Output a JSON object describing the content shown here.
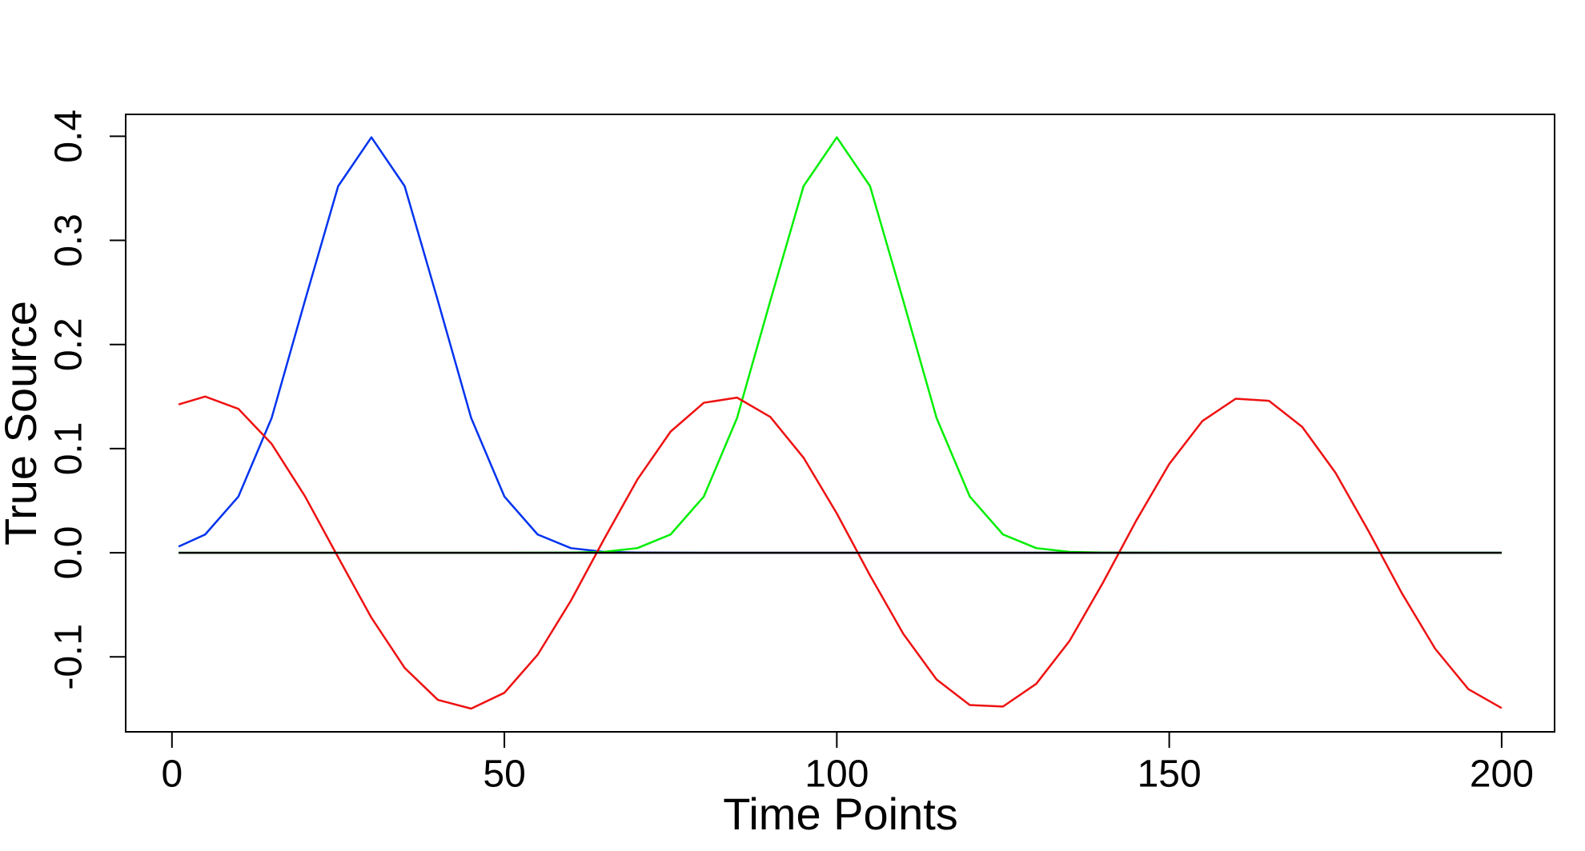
{
  "chart_data": {
    "type": "line",
    "xlabel": "Time Points",
    "ylabel": "True Source",
    "x": [
      1,
      5,
      10,
      15,
      20,
      25,
      30,
      35,
      40,
      45,
      50,
      55,
      60,
      65,
      70,
      75,
      80,
      85,
      90,
      95,
      100,
      105,
      110,
      115,
      120,
      125,
      130,
      135,
      140,
      145,
      150,
      155,
      160,
      165,
      170,
      175,
      180,
      185,
      190,
      195,
      200
    ],
    "series": [
      {
        "color": "#0033ee",
        "values": [
          0.00595,
          0.01753,
          0.05399,
          0.12952,
          0.24197,
          0.35207,
          0.39894,
          0.35207,
          0.24197,
          0.12952,
          0.05399,
          0.01753,
          0.00443,
          0.00087,
          0.00013,
          2e-05,
          0,
          0,
          0,
          0,
          0,
          0,
          0,
          0,
          0,
          0,
          0,
          0,
          0,
          0,
          0,
          0,
          0,
          0,
          0,
          0,
          0,
          0,
          0,
          0,
          0
        ]
      },
      {
        "color": "#00ee00",
        "values": [
          0,
          0,
          0,
          0,
          0,
          0,
          0,
          0,
          0,
          0,
          0,
          2e-05,
          0.00013,
          0.00087,
          0.00443,
          0.01753,
          0.05399,
          0.12952,
          0.24197,
          0.35207,
          0.39894,
          0.35207,
          0.24197,
          0.12952,
          0.05399,
          0.01753,
          0.00443,
          0.00087,
          0.00013,
          2e-05,
          0,
          0,
          0,
          0,
          0,
          0,
          0,
          0,
          0,
          0,
          0
        ]
      },
      {
        "color": "#ee1111",
        "values": [
          0.14239,
          0.15,
          0.13816,
          0.10451,
          0.05435,
          -0.00438,
          -0.06242,
          -0.11061,
          -0.14133,
          -0.14974,
          -0.13451,
          -0.09805,
          -0.0461,
          0.01313,
          0.07028,
          0.11634,
          0.14403,
          0.14899,
          0.13041,
          0.09125,
          0.0377,
          -0.02183,
          -0.07789,
          -0.12168,
          -0.14623,
          -0.1477,
          -0.12586,
          -0.0847,
          -0.02913,
          0.03045,
          0.08519,
          0.12658,
          0.14793,
          0.14593,
          0.12088,
          0.07689,
          0.02053,
          -0.03897,
          -0.09222,
          -0.13106,
          -0.14922
        ]
      },
      {
        "color": "#000000",
        "values": [
          0,
          0,
          0,
          0,
          0,
          0,
          0,
          0,
          0,
          0,
          0,
          0,
          0,
          0,
          0,
          0,
          0,
          0,
          0,
          0,
          0,
          0,
          0,
          0,
          0,
          0,
          0,
          0,
          0,
          0,
          0,
          0,
          0,
          0,
          0,
          0,
          0,
          0,
          0,
          0,
          0
        ]
      }
    ],
    "xlim": [
      -6.96,
      207.96
    ],
    "xticks": [
      0,
      50,
      100,
      150,
      200
    ],
    "ylim": [
      -0.172,
      0.421
    ],
    "yticks": [
      -0.1,
      {
        "value": 0,
        "label": "0.0"
      },
      0.1,
      0.2,
      0.3,
      0.4
    ]
  }
}
